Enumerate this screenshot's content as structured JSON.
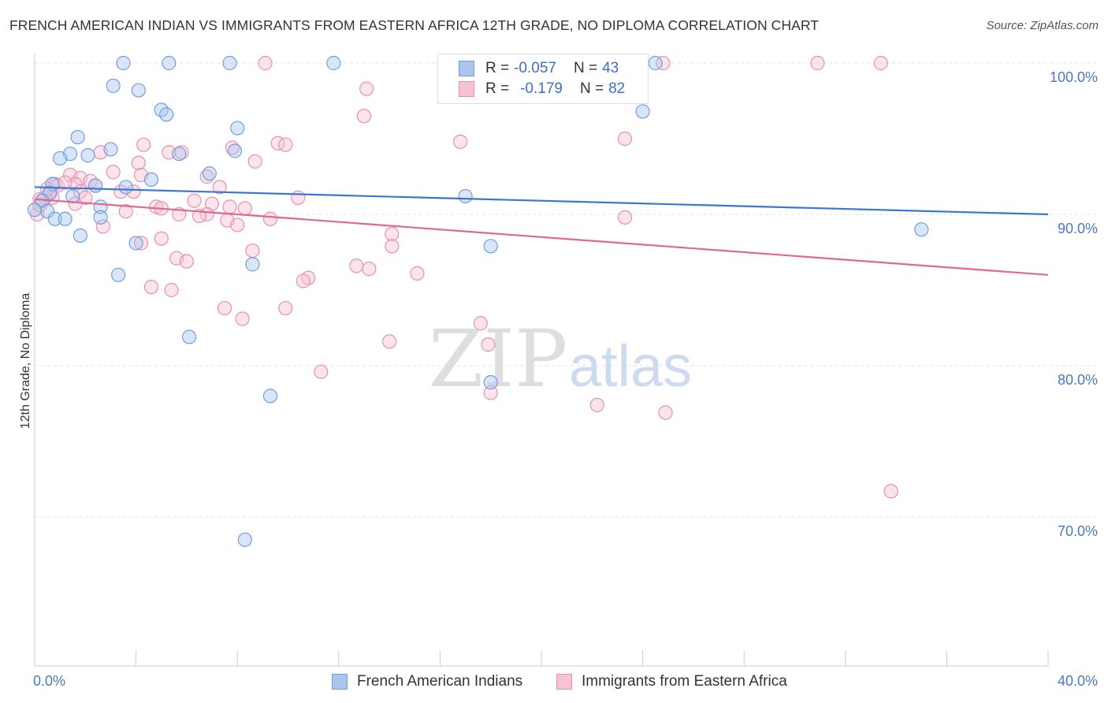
{
  "chart_data": {
    "type": "scatter",
    "title": "FRENCH AMERICAN INDIAN VS IMMIGRANTS FROM EASTERN AFRICA 12TH GRADE, NO DIPLOMA CORRELATION CHART",
    "source": "Source: ZipAtlas.com",
    "ylabel": "12th Grade, No Diploma",
    "xlim": [
      0,
      40
    ],
    "ylim": [
      60,
      100
    ],
    "x_tick_labels": [
      "0.0%",
      "40.0%"
    ],
    "y_ticks": [
      {
        "value": 100,
        "label": "100.0%"
      },
      {
        "value": 90,
        "label": "90.0%"
      },
      {
        "value": 80,
        "label": "80.0%"
      },
      {
        "value": 70,
        "label": "70.0%"
      }
    ],
    "watermark": {
      "zip": "ZIP",
      "atlas": "atlas"
    },
    "legend": {
      "r_label": "R =",
      "n_label": "N ="
    },
    "series": [
      {
        "name": "French American Indians",
        "color": "#6f9fe0",
        "fill": "#aac6ef",
        "line_color": "#3a78d0",
        "R": "-0.057",
        "N": "43",
        "trend": [
          [
            0,
            91.8
          ],
          [
            40,
            90.0
          ]
        ],
        "points": [
          [
            3.5,
            100
          ],
          [
            5.3,
            100
          ],
          [
            7.7,
            100
          ],
          [
            11.8,
            100
          ],
          [
            24.5,
            100
          ],
          [
            3.1,
            98.5
          ],
          [
            4.1,
            98.2
          ],
          [
            5.0,
            96.9
          ],
          [
            5.2,
            96.6
          ],
          [
            24.0,
            96.8
          ],
          [
            8.0,
            95.7
          ],
          [
            1.7,
            95.1
          ],
          [
            3.0,
            94.3
          ],
          [
            2.1,
            93.9
          ],
          [
            7.9,
            94.2
          ],
          [
            5.7,
            94.0
          ],
          [
            1.4,
            94.0
          ],
          [
            1.0,
            93.7
          ],
          [
            6.9,
            92.7
          ],
          [
            4.6,
            92.3
          ],
          [
            0.7,
            92.0
          ],
          [
            2.4,
            91.9
          ],
          [
            3.6,
            91.8
          ],
          [
            0.6,
            91.4
          ],
          [
            1.5,
            91.2
          ],
          [
            0.3,
            90.9
          ],
          [
            17.0,
            91.2
          ],
          [
            2.6,
            90.5
          ],
          [
            0.5,
            90.2
          ],
          [
            0.0,
            90.3
          ],
          [
            0.8,
            89.7
          ],
          [
            1.2,
            89.7
          ],
          [
            2.6,
            89.8
          ],
          [
            1.8,
            88.6
          ],
          [
            4.0,
            88.1
          ],
          [
            18.0,
            87.9
          ],
          [
            8.6,
            86.7
          ],
          [
            3.3,
            86.0
          ],
          [
            35.0,
            89.0
          ],
          [
            6.1,
            81.9
          ],
          [
            18.0,
            78.9
          ],
          [
            9.3,
            78.0
          ],
          [
            8.3,
            68.5
          ]
        ]
      },
      {
        "name": "Immigrants from Eastern Africa",
        "color": "#e88fae",
        "fill": "#f6c3d4",
        "line_color": "#e06694",
        "R": "-0.179",
        "N": "82",
        "trend": [
          [
            0,
            91.0
          ],
          [
            40,
            86.0
          ]
        ],
        "points": [
          [
            9.1,
            100
          ],
          [
            24.8,
            100
          ],
          [
            30.9,
            100
          ],
          [
            33.4,
            100
          ],
          [
            13.1,
            98.3
          ],
          [
            13.0,
            96.5
          ],
          [
            16.8,
            94.8
          ],
          [
            23.3,
            95.0
          ],
          [
            4.3,
            94.6
          ],
          [
            9.6,
            94.7
          ],
          [
            9.9,
            94.6
          ],
          [
            7.8,
            94.4
          ],
          [
            2.6,
            94.1
          ],
          [
            5.3,
            94.1
          ],
          [
            5.8,
            94.1
          ],
          [
            8.7,
            93.5
          ],
          [
            4.1,
            93.4
          ],
          [
            3.1,
            92.8
          ],
          [
            4.2,
            92.6
          ],
          [
            1.4,
            92.6
          ],
          [
            1.8,
            92.4
          ],
          [
            6.8,
            92.5
          ],
          [
            2.2,
            92.2
          ],
          [
            0.8,
            92.0
          ],
          [
            1.6,
            92.0
          ],
          [
            2.4,
            91.9
          ],
          [
            7.3,
            91.8
          ],
          [
            0.6,
            91.5
          ],
          [
            3.9,
            91.5
          ],
          [
            1.8,
            91.5
          ],
          [
            3.4,
            91.5
          ],
          [
            10.4,
            91.1
          ],
          [
            0.7,
            91.1
          ],
          [
            0.4,
            91.1
          ],
          [
            0.2,
            91.0
          ],
          [
            6.3,
            90.9
          ],
          [
            1.6,
            90.7
          ],
          [
            7.0,
            90.7
          ],
          [
            7.7,
            90.5
          ],
          [
            4.8,
            90.5
          ],
          [
            5.0,
            90.4
          ],
          [
            8.3,
            90.4
          ],
          [
            3.6,
            90.2
          ],
          [
            5.7,
            90.0
          ],
          [
            6.8,
            90.0
          ],
          [
            6.5,
            89.9
          ],
          [
            23.3,
            89.8
          ],
          [
            9.3,
            89.7
          ],
          [
            7.6,
            89.6
          ],
          [
            2.7,
            89.2
          ],
          [
            8.0,
            89.3
          ],
          [
            14.1,
            88.7
          ],
          [
            5.0,
            88.4
          ],
          [
            4.2,
            88.1
          ],
          [
            14.1,
            87.9
          ],
          [
            8.6,
            87.6
          ],
          [
            5.6,
            87.1
          ],
          [
            6.0,
            86.9
          ],
          [
            12.7,
            86.6
          ],
          [
            13.2,
            86.4
          ],
          [
            15.1,
            86.1
          ],
          [
            10.8,
            85.8
          ],
          [
            10.6,
            85.6
          ],
          [
            4.6,
            85.2
          ],
          [
            5.4,
            85.0
          ],
          [
            7.5,
            83.8
          ],
          [
            9.9,
            83.8
          ],
          [
            8.2,
            83.1
          ],
          [
            17.6,
            82.8
          ],
          [
            17.9,
            81.4
          ],
          [
            14.0,
            81.6
          ],
          [
            11.3,
            79.6
          ],
          [
            18.0,
            78.2
          ],
          [
            22.2,
            77.4
          ],
          [
            24.9,
            76.9
          ],
          [
            33.8,
            71.7
          ],
          [
            0.1,
            90.0
          ],
          [
            0.2,
            90.6
          ],
          [
            0.5,
            91.7
          ],
          [
            0.9,
            91.9
          ],
          [
            1.2,
            92.1
          ],
          [
            2.0,
            91.1
          ]
        ]
      }
    ]
  }
}
